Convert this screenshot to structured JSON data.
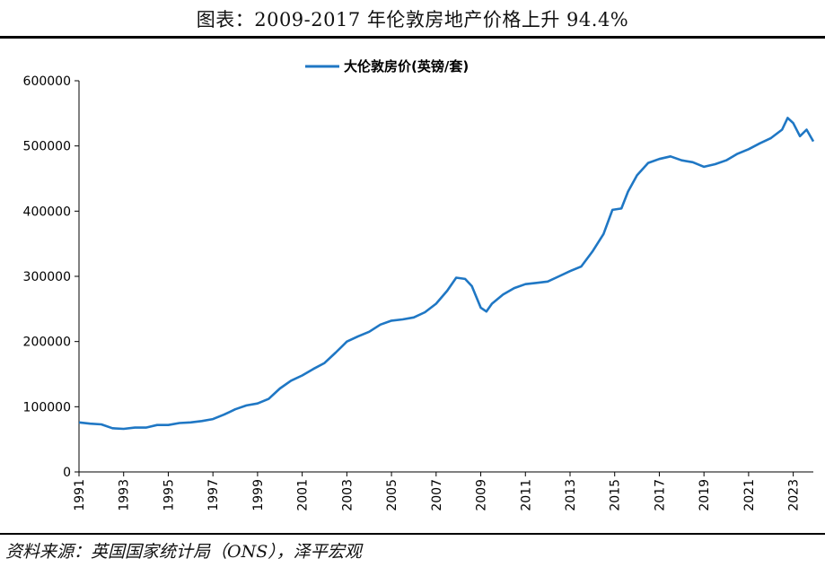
{
  "header": {
    "title": "图表：2009-2017 年伦敦房地产价格上升 94.4%"
  },
  "footer": {
    "source": "资料来源：英国国家统计局（ONS），泽平宏观"
  },
  "colors": {
    "series": "#1f77c4",
    "axis": "#000000",
    "rule": "#000000"
  },
  "chart_data": {
    "type": "line",
    "title": "",
    "xlabel": "",
    "ylabel": "",
    "legend_position": "top-center",
    "grid": false,
    "ylim": [
      0,
      600000
    ],
    "xlim": [
      1991,
      2023.9
    ],
    "y_ticks": [
      "0",
      "100000",
      "200000",
      "300000",
      "400000",
      "500000",
      "600000"
    ],
    "x_ticks": [
      "1991",
      "1993",
      "1995",
      "1997",
      "1999",
      "2001",
      "2003",
      "2005",
      "2007",
      "2009",
      "2011",
      "2013",
      "2015",
      "2017",
      "2019",
      "2021",
      "2023"
    ],
    "series": [
      {
        "name": "大伦敦房价(英镑/套)",
        "x": [
          1991.0,
          1991.5,
          1992.0,
          1992.5,
          1993.0,
          1993.5,
          1994.0,
          1994.5,
          1995.0,
          1995.5,
          1996.0,
          1996.5,
          1997.0,
          1997.5,
          1998.0,
          1998.5,
          1999.0,
          1999.5,
          2000.0,
          2000.5,
          2001.0,
          2001.5,
          2002.0,
          2002.5,
          2003.0,
          2003.5,
          2004.0,
          2004.5,
          2005.0,
          2005.5,
          2006.0,
          2006.5,
          2007.0,
          2007.5,
          2007.9,
          2008.3,
          2008.6,
          2009.0,
          2009.25,
          2009.5,
          2010.0,
          2010.5,
          2011.0,
          2011.5,
          2012.0,
          2012.5,
          2013.0,
          2013.5,
          2014.0,
          2014.5,
          2014.9,
          2015.3,
          2015.6,
          2016.0,
          2016.5,
          2017.0,
          2017.5,
          2018.0,
          2018.5,
          2019.0,
          2019.5,
          2020.0,
          2020.5,
          2021.0,
          2021.5,
          2022.0,
          2022.5,
          2022.75,
          2023.0,
          2023.3,
          2023.6,
          2023.9
        ],
        "values": [
          76000,
          74000,
          73000,
          67000,
          66000,
          68000,
          68000,
          72000,
          72000,
          75000,
          76000,
          78000,
          81000,
          88000,
          96000,
          102000,
          105000,
          112000,
          128000,
          140000,
          148000,
          158000,
          167000,
          183000,
          200000,
          208000,
          215000,
          226000,
          232000,
          234000,
          237000,
          245000,
          258000,
          278000,
          298000,
          296000,
          285000,
          252000,
          246000,
          258000,
          272000,
          282000,
          288000,
          290000,
          292000,
          300000,
          308000,
          315000,
          338000,
          365000,
          402000,
          404000,
          430000,
          455000,
          474000,
          480000,
          484000,
          478000,
          475000,
          468000,
          472000,
          478000,
          488000,
          495000,
          504000,
          512000,
          525000,
          543000,
          535000,
          515000,
          525000,
          507000
        ]
      }
    ]
  }
}
